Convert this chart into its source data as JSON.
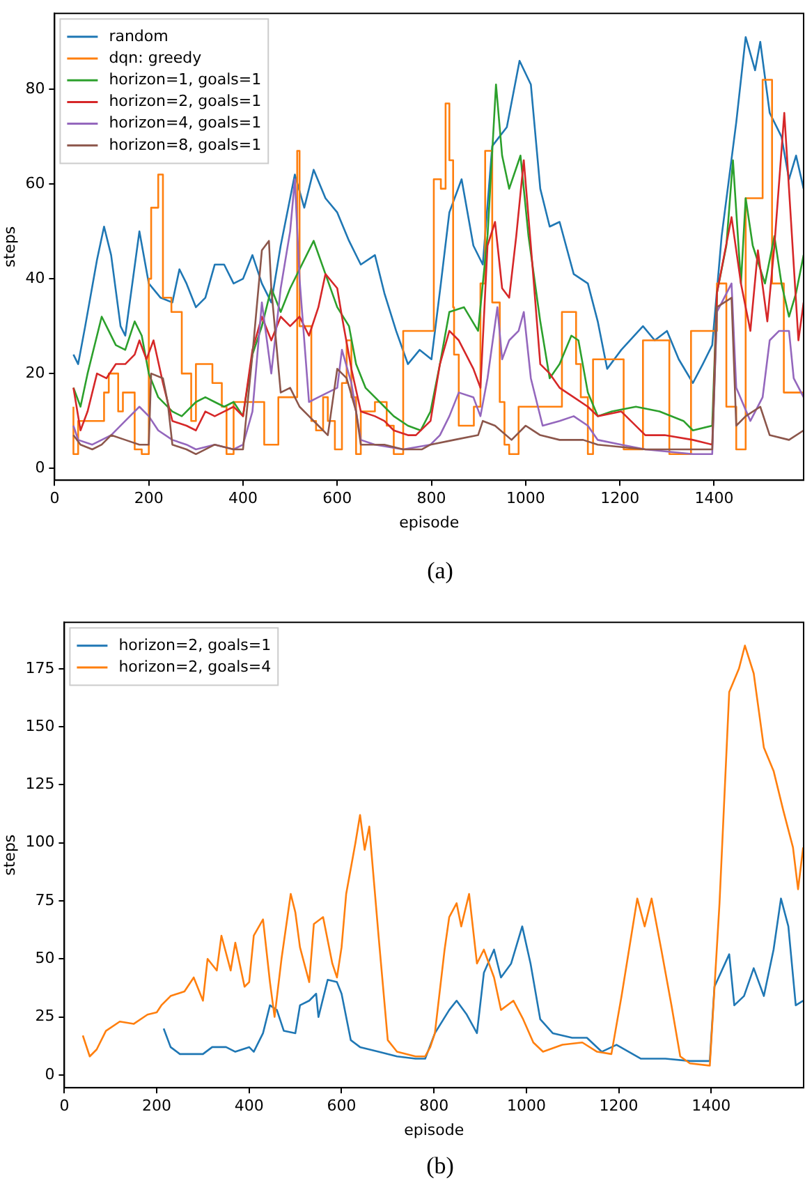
{
  "chart_data": [
    {
      "type": "line",
      "xlabel": "episode",
      "ylabel": "steps",
      "xlim": [
        0,
        1590
      ],
      "xticks": [
        0,
        200,
        400,
        600,
        800,
        1000,
        1200,
        1400
      ],
      "ylim": [
        -2.5,
        96
      ],
      "yticks": [
        0,
        20,
        40,
        60,
        80
      ],
      "legend": "top left",
      "annotations": [
        "(a)"
      ],
      "series": [
        {
          "name": "random",
          "color": "#1f77b4",
          "x": [
            40,
            50,
            65,
            90,
            105,
            120,
            140,
            150,
            180,
            200,
            225,
            250,
            265,
            280,
            300,
            320,
            340,
            360,
            380,
            400,
            420,
            440,
            460,
            480,
            500,
            510,
            530,
            550,
            575,
            600,
            625,
            650,
            680,
            700,
            725,
            750,
            775,
            800,
            820,
            838,
            864,
            889,
            909,
            929,
            960,
            987,
            1011,
            1031,
            1051,
            1072,
            1102,
            1132,
            1153,
            1173,
            1203,
            1249,
            1274,
            1300,
            1325,
            1355,
            1376,
            1396,
            1416,
            1447,
            1467,
            1487,
            1498,
            1518,
            1543,
            1559,
            1574,
            1590
          ],
          "values": [
            24,
            22,
            30,
            44,
            51,
            45,
            30,
            28,
            50,
            39,
            36,
            35,
            42,
            39,
            34,
            36,
            43,
            43,
            39,
            40,
            45,
            39,
            35,
            47,
            57,
            62,
            55,
            63,
            57,
            54,
            48,
            43,
            45,
            37,
            29,
            22,
            25,
            23,
            39,
            54,
            61,
            47,
            43,
            68,
            72,
            86,
            81,
            59,
            51,
            52,
            41,
            39,
            31,
            21,
            25,
            30,
            27,
            29,
            23,
            18,
            22,
            26,
            49,
            73,
            91,
            84,
            90,
            75,
            70,
            61,
            66,
            59
          ]
        },
        {
          "name": "dqn: greedy",
          "type": "step",
          "color": "#ff7f0e",
          "x": [
            40,
            50,
            105,
            115,
            135,
            145,
            170,
            185,
            200,
            205,
            220,
            230,
            248,
            270,
            290,
            300,
            335,
            355,
            365,
            380,
            445,
            475,
            515,
            520,
            545,
            555,
            570,
            580,
            595,
            610,
            620,
            630,
            640,
            650,
            680,
            705,
            720,
            740,
            805,
            820,
            830,
            838,
            846,
            848,
            858,
            890,
            904,
            914,
            929,
            945,
            955,
            965,
            985,
            1077,
            1107,
            1117,
            1132,
            1143,
            1208,
            1249,
            1305,
            1351,
            1406,
            1426,
            1447,
            1467,
            1503,
            1523,
            1548,
            1559,
            1590
          ],
          "values": [
            13,
            3,
            10,
            16,
            20,
            12,
            16,
            4,
            3,
            40,
            55,
            62,
            36,
            33,
            20,
            10,
            22,
            18,
            13,
            3,
            14,
            5,
            15,
            67,
            30,
            10,
            8,
            15,
            10,
            4,
            18,
            27,
            15,
            3,
            12,
            14,
            9,
            3,
            29,
            61,
            59,
            77,
            65,
            34,
            24,
            9,
            13,
            39,
            67,
            35,
            14,
            5,
            3,
            13,
            33,
            22,
            15,
            3,
            23,
            4,
            27,
            3,
            29,
            39,
            13,
            4,
            57,
            82,
            39,
            16,
            16
          ]
        },
        {
          "name": "horizon=1, goals=1",
          "color": "#2ca02c",
          "x": [
            40,
            55,
            70,
            90,
            100,
            115,
            130,
            150,
            170,
            185,
            200,
            220,
            250,
            270,
            300,
            320,
            340,
            360,
            380,
            400,
            420,
            440,
            460,
            480,
            500,
            520,
            550,
            575,
            600,
            625,
            640,
            660,
            680,
            700,
            720,
            750,
            777,
            798,
            818,
            838,
            869,
            899,
            919,
            937,
            950,
            965,
            989,
            1006,
            1031,
            1051,
            1072,
            1097,
            1112,
            1132,
            1153,
            1183,
            1234,
            1284,
            1335,
            1355,
            1396,
            1406,
            1426,
            1440,
            1457,
            1467,
            1482,
            1508,
            1528,
            1543,
            1559,
            1574,
            1590
          ],
          "values": [
            17,
            13,
            20,
            28,
            32,
            29,
            26,
            25,
            31,
            28,
            20,
            15,
            12,
            11,
            14,
            15,
            14,
            13,
            14,
            11,
            24,
            30,
            38,
            33,
            38,
            42,
            48,
            41,
            34,
            30,
            22,
            17,
            15,
            13,
            11,
            9,
            8,
            12,
            22,
            33,
            34,
            29,
            49,
            81,
            66,
            59,
            66,
            49,
            31,
            19,
            22,
            28,
            27,
            16,
            11,
            12,
            13,
            12,
            10,
            8,
            9,
            37,
            47,
            65,
            39,
            57,
            47,
            39,
            49,
            39,
            32,
            37,
            45
          ]
        },
        {
          "name": "horizon=2, goals=1",
          "color": "#d62728",
          "x": [
            40,
            55,
            70,
            90,
            110,
            130,
            150,
            170,
            180,
            195,
            210,
            230,
            250,
            280,
            300,
            320,
            340,
            360,
            380,
            400,
            420,
            440,
            460,
            480,
            500,
            520,
            540,
            560,
            575,
            600,
            610,
            630,
            650,
            680,
            700,
            720,
            750,
            767,
            798,
            818,
            838,
            858,
            889,
            904,
            919,
            935,
            950,
            965,
            980,
            996,
            1011,
            1031,
            1051,
            1072,
            1102,
            1132,
            1153,
            1203,
            1254,
            1295,
            1355,
            1396,
            1406,
            1437,
            1457,
            1477,
            1493,
            1513,
            1528,
            1549,
            1559,
            1579,
            1590
          ],
          "values": [
            17,
            8,
            12,
            20,
            19,
            22,
            22,
            24,
            27,
            23,
            27,
            18,
            10,
            9,
            8,
            12,
            11,
            12,
            13,
            11,
            25,
            32,
            27,
            32,
            30,
            32,
            28,
            34,
            41,
            38,
            32,
            21,
            12,
            11,
            10,
            8,
            7,
            7,
            10,
            22,
            29,
            27,
            21,
            17,
            47,
            52,
            38,
            36,
            49,
            65,
            47,
            22,
            20,
            17,
            15,
            13,
            11,
            12,
            7,
            7,
            6,
            5,
            37,
            53,
            39,
            29,
            46,
            31,
            47,
            75,
            59,
            27,
            35
          ]
        },
        {
          "name": "horizon=4, goals=1",
          "color": "#9467bd",
          "x": [
            40,
            50,
            80,
            100,
            120,
            150,
            180,
            200,
            220,
            250,
            280,
            300,
            340,
            380,
            400,
            420,
            440,
            460,
            480,
            500,
            510,
            520,
            540,
            560,
            580,
            600,
            610,
            630,
            650,
            680,
            740,
            798,
            818,
            838,
            858,
            889,
            904,
            919,
            940,
            950,
            965,
            985,
            996,
            1011,
            1036,
            1072,
            1102,
            1132,
            1153,
            1203,
            1254,
            1355,
            1396,
            1406,
            1437,
            1447,
            1477,
            1503,
            1518,
            1538,
            1559,
            1569,
            1590
          ],
          "values": [
            9,
            6,
            5,
            6,
            7,
            10,
            13,
            11,
            8,
            6,
            5,
            4,
            5,
            4,
            5,
            12,
            35,
            20,
            38,
            50,
            61,
            40,
            14,
            15,
            16,
            17,
            25,
            18,
            6,
            5,
            4,
            5,
            7,
            11,
            16,
            15,
            11,
            19,
            34,
            23,
            27,
            29,
            33,
            19,
            9,
            10,
            11,
            9,
            6,
            5,
            4,
            3,
            3,
            33,
            39,
            17,
            10,
            15,
            27,
            29,
            29,
            19,
            15
          ]
        },
        {
          "name": "horizon=8, goals=1",
          "color": "#8c564b",
          "x": [
            40,
            55,
            80,
            100,
            120,
            150,
            180,
            200,
            205,
            230,
            240,
            250,
            280,
            300,
            340,
            380,
            400,
            420,
            440,
            455,
            460,
            480,
            500,
            520,
            540,
            560,
            580,
            600,
            620,
            640,
            650,
            700,
            740,
            780,
            798,
            848,
            899,
            909,
            935,
            970,
            1000,
            1031,
            1072,
            1122,
            1153,
            1254,
            1355,
            1396,
            1406,
            1437,
            1447,
            1467,
            1498,
            1518,
            1559,
            1590
          ],
          "values": [
            7,
            5,
            4,
            5,
            7,
            6,
            5,
            5,
            20,
            19,
            14,
            5,
            4,
            3,
            5,
            4,
            4,
            24,
            46,
            48,
            38,
            16,
            17,
            13,
            11,
            9,
            7,
            21,
            19,
            12,
            5,
            5,
            4,
            4,
            5,
            6,
            7,
            10,
            9,
            6,
            9,
            7,
            6,
            6,
            5,
            4,
            4,
            4,
            34,
            36,
            9,
            11,
            13,
            7,
            6,
            8
          ]
        }
      ]
    },
    {
      "type": "line",
      "xlabel": "episode",
      "ylabel": "steps",
      "xlim": [
        0,
        1600
      ],
      "xticks": [
        0,
        200,
        400,
        600,
        800,
        1000,
        1200,
        1400
      ],
      "ylim": [
        -5.5,
        195
      ],
      "yticks": [
        0,
        25,
        50,
        75,
        100,
        125,
        150,
        175
      ],
      "legend": "top left",
      "annotations": [
        "(b)"
      ],
      "series": [
        {
          "name": "horizon=2, goals=1",
          "color": "#1f77b4",
          "x": [
            215,
            230,
            250,
            300,
            320,
            350,
            370,
            400,
            410,
            430,
            445,
            460,
            475,
            500,
            510,
            530,
            545,
            550,
            570,
            590,
            600,
            620,
            640,
            680,
            720,
            760,
            781,
            802,
            833,
            849,
            871,
            893,
            908,
            930,
            945,
            967,
            991,
            1009,
            1030,
            1057,
            1099,
            1131,
            1163,
            1195,
            1248,
            1301,
            1354,
            1397,
            1407,
            1439,
            1450,
            1471,
            1492,
            1514,
            1535,
            1551,
            1567,
            1583,
            1599
          ],
          "values": [
            20,
            12,
            9,
            9,
            12,
            12,
            10,
            12,
            10,
            18,
            30,
            28,
            19,
            18,
            30,
            32,
            35,
            25,
            41,
            40,
            35,
            15,
            12,
            10,
            8,
            7,
            7,
            18,
            28,
            32,
            26,
            18,
            44,
            54,
            42,
            48,
            64,
            48,
            24,
            18,
            16,
            16,
            10,
            13,
            7,
            7,
            6,
            6,
            38,
            52,
            30,
            34,
            46,
            34,
            54,
            76,
            64,
            30,
            32
          ]
        },
        {
          "name": "horizon=2, goals=4",
          "color": "#ff7f0e",
          "x": [
            40,
            55,
            70,
            90,
            120,
            150,
            180,
            200,
            210,
            230,
            260,
            280,
            300,
            310,
            330,
            340,
            360,
            370,
            390,
            400,
            410,
            430,
            445,
            455,
            470,
            490,
            500,
            510,
            530,
            540,
            560,
            580,
            590,
            600,
            610,
            630,
            640,
            650,
            660,
            680,
            700,
            720,
            760,
            781,
            792,
            802,
            823,
            833,
            849,
            859,
            876,
            893,
            908,
            930,
            945,
            972,
            993,
            1015,
            1036,
            1078,
            1121,
            1153,
            1184,
            1206,
            1240,
            1256,
            1271,
            1292,
            1314,
            1333,
            1354,
            1397,
            1418,
            1439,
            1460,
            1473,
            1492,
            1514,
            1535,
            1556,
            1577,
            1588,
            1599
          ],
          "values": [
            17,
            8,
            11,
            19,
            23,
            22,
            26,
            27,
            30,
            34,
            36,
            42,
            32,
            50,
            45,
            60,
            45,
            57,
            38,
            40,
            60,
            67,
            40,
            25,
            50,
            78,
            70,
            55,
            40,
            65,
            68,
            48,
            42,
            55,
            78,
            100,
            112,
            97,
            107,
            60,
            15,
            10,
            8,
            8,
            12,
            18,
            54,
            68,
            74,
            64,
            78,
            48,
            54,
            42,
            28,
            32,
            24,
            14,
            10,
            13,
            14,
            10,
            9,
            34,
            76,
            64,
            76,
            54,
            30,
            8,
            5,
            4,
            74,
            165,
            175,
            185,
            173,
            141,
            131,
            114,
            98,
            80,
            98
          ]
        }
      ]
    }
  ]
}
